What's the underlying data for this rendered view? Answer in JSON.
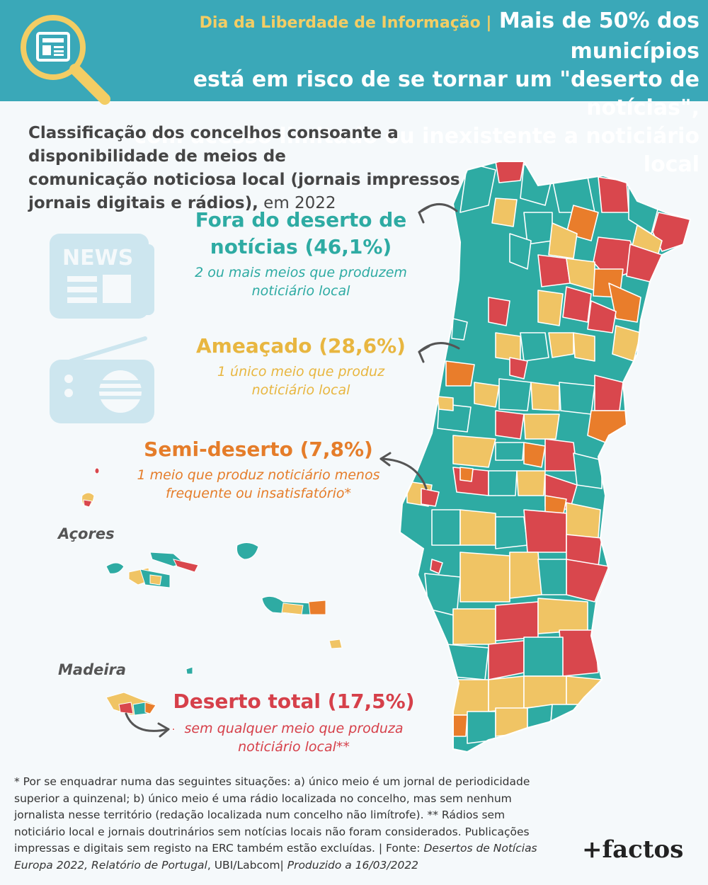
{
  "header": {
    "kicker": "Dia da Liberdade de Informação |",
    "title_line1": "Mais de 50% dos municípios",
    "title_line2": "está em risco de se tornar um \"deserto de notícias\",",
    "title_line3": "com acesso limitado ou inexistente a noticiário local"
  },
  "subtitle": {
    "bold_line1": "Classificação dos concelhos consoante a disponibilidade de meios de",
    "bold_line2": "comunicação noticiosa local (jornais impressos,",
    "bold_line3": "jornais digitais e rádios),",
    "plain_end": " em 2022"
  },
  "icons": {
    "news_label": "NEWS",
    "newspaper": "newspaper-icon",
    "radio": "radio-icon",
    "magnifier": "magnifier-newspaper-icon"
  },
  "categories": [
    {
      "id": "fora",
      "title_line1": "Fora do deserto de",
      "title_line2": "notícias (46,1%)",
      "desc_line1": "2 ou mais meios que produzem",
      "desc_line2": "noticiário local",
      "share": 46.1,
      "color": "#2eaba3"
    },
    {
      "id": "ameacado",
      "title_line1": "Ameaçado (28,6%)",
      "desc_line1": "1 único meio que produz",
      "desc_line2": "noticiário local",
      "share": 28.6,
      "color": "#f0c464"
    },
    {
      "id": "semi",
      "title_line1": "Semi-deserto (7,8%)",
      "desc_line1": "1 meio que produz noticiário menos",
      "desc_line2": "frequente ou insatisfatório*",
      "share": 7.8,
      "color": "#e97d2b"
    },
    {
      "id": "deserto",
      "title_line1": "Deserto total (17,5%)",
      "desc_line1": "sem qualquer meio que produza",
      "desc_line2": "noticiário local**",
      "share": 17.5,
      "color": "#d9474d"
    }
  ],
  "regions": {
    "azores": "Açores",
    "madeira": "Madeira"
  },
  "footnote": {
    "line1": "* Por se enquadrar numa das seguintes situações: a) único meio é um jornal de periodicidade",
    "line2": "superior a quinzenal; b) único meio é uma rádio localizada no concelho, mas sem nenhum",
    "line3": "jornalista nesse território (redação localizada num concelho não limítrofe). ** Rádios sem",
    "line4": "noticiário local e jornais doutrinários sem notícias locais não foram considerados. Publicações",
    "line5a": "impressas e digitais sem registo na ERC também estão excluídas. | Fonte: ",
    "line5b": "Desertos de Notícias",
    "line6a": "Europa 2022, Relatório de Portugal",
    "line6b": ", UBI/Labcom| ",
    "line6c": "Produzido a 16/03/2022"
  },
  "brand": "+factos",
  "colors": {
    "header_bg": "#3aa8b8",
    "accent_yellow": "#f3cd64",
    "icon_light": "#cde6ef",
    "map_border": "#ffffff"
  }
}
